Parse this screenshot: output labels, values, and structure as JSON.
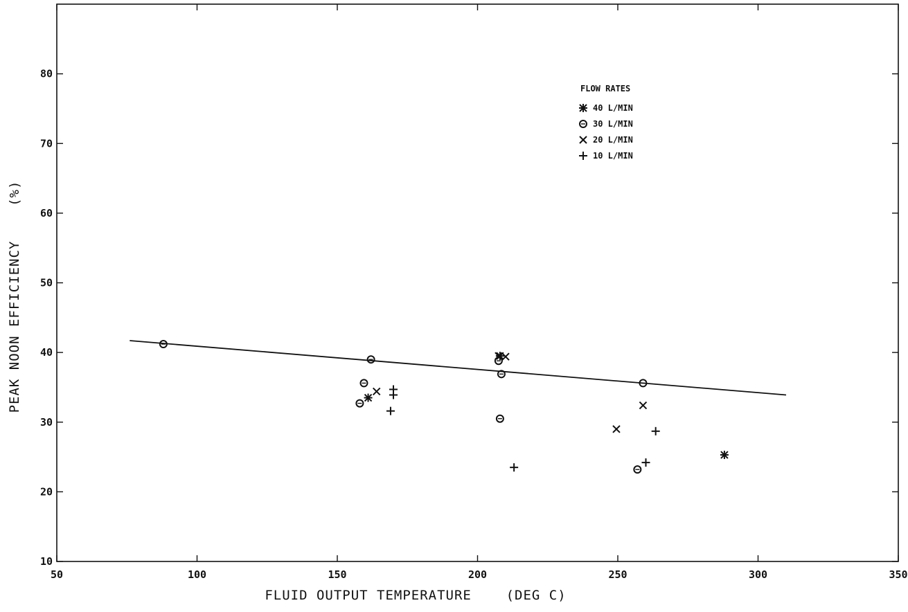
{
  "chart_data": {
    "type": "scatter",
    "title": "",
    "xlabel": "FLUID OUTPUT TEMPERATURE    (DEG C)",
    "ylabel": "PEAK NOON EFFICIENCY    (%)",
    "xlim": [
      50,
      350
    ],
    "ylim": [
      10,
      90
    ],
    "x_ticks": [
      50,
      100,
      150,
      200,
      250,
      300,
      350
    ],
    "y_ticks": [
      10,
      20,
      30,
      40,
      50,
      60,
      70,
      80
    ],
    "legend": {
      "title": "FLOW RATES",
      "placement": "top-right"
    },
    "series": [
      {
        "name": "40 L/MIN",
        "marker": "asterisk",
        "points": [
          [
            161,
            33.5
          ],
          [
            208,
            39.5
          ],
          [
            288,
            25.3
          ]
        ]
      },
      {
        "name": "30 L/MIN",
        "marker": "circle",
        "points": [
          [
            88,
            41.2
          ],
          [
            158,
            32.7
          ],
          [
            159.5,
            35.6
          ],
          [
            162,
            39.0
          ],
          [
            207.5,
            38.8
          ],
          [
            208.5,
            36.9
          ],
          [
            208,
            30.5
          ],
          [
            257,
            23.2
          ],
          [
            259,
            35.6
          ]
        ]
      },
      {
        "name": "20 L/MIN",
        "marker": "x",
        "points": [
          [
            164,
            34.4
          ],
          [
            207.5,
            39.5
          ],
          [
            210,
            39.4
          ],
          [
            249.5,
            29.0
          ],
          [
            259,
            32.4
          ]
        ]
      },
      {
        "name": "10 L/MIN",
        "marker": "plus",
        "points": [
          [
            169,
            31.6
          ],
          [
            170,
            33.9
          ],
          [
            170,
            34.7
          ],
          [
            213,
            23.5
          ],
          [
            260,
            24.2
          ],
          [
            263.5,
            28.7
          ]
        ]
      }
    ],
    "fit_line": {
      "x": [
        76,
        310
      ],
      "y": [
        41.7,
        33.9
      ]
    },
    "colors": {
      "ink": "#111111",
      "background": "#ffffff"
    }
  }
}
